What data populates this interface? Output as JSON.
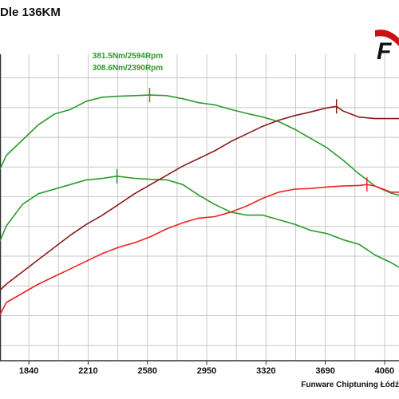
{
  "title": "Dle 136KM",
  "footer": "Funware Chiptuning Łódź",
  "logo_text": "F",
  "logo_accent_color": "#cc1111",
  "chart_data": {
    "type": "line",
    "xlim": [
      1660,
      4150
    ],
    "ylim": [
      0,
      10
    ],
    "grid": true,
    "x_ticks": [
      1840,
      2210,
      2580,
      2950,
      3320,
      3690,
      4060
    ],
    "x_tick_labels": [
      "1840",
      "2210",
      "2580",
      "2950",
      "3320",
      "3690",
      "4060"
    ],
    "y_ticks": [
      0.5,
      1.47,
      2.44,
      3.41,
      4.38,
      5.35,
      6.32,
      7.29,
      8.26,
      9.23
    ],
    "series": [
      {
        "color": "#2a9a2a",
        "points": [
          [
            1660,
            6.25
          ],
          [
            1700,
            6.7
          ],
          [
            1800,
            7.2
          ],
          [
            1900,
            7.7
          ],
          [
            2000,
            8.05
          ],
          [
            2100,
            8.2
          ],
          [
            2200,
            8.47
          ],
          [
            2300,
            8.6
          ],
          [
            2400,
            8.63
          ],
          [
            2500,
            8.65
          ],
          [
            2594,
            8.67
          ],
          [
            2700,
            8.65
          ],
          [
            2800,
            8.55
          ],
          [
            2900,
            8.42
          ],
          [
            3000,
            8.35
          ],
          [
            3100,
            8.2
          ],
          [
            3200,
            8.07
          ],
          [
            3300,
            7.95
          ],
          [
            3400,
            7.8
          ],
          [
            3500,
            7.55
          ],
          [
            3600,
            7.25
          ],
          [
            3700,
            6.95
          ],
          [
            3800,
            6.55
          ],
          [
            3900,
            6.1
          ],
          [
            4000,
            5.7
          ],
          [
            4100,
            5.47
          ],
          [
            4150,
            5.4
          ]
        ]
      },
      {
        "color": "#2a9a2a",
        "points": [
          [
            1660,
            3.9
          ],
          [
            1700,
            4.4
          ],
          [
            1800,
            5.1
          ],
          [
            1900,
            5.45
          ],
          [
            2000,
            5.6
          ],
          [
            2100,
            5.75
          ],
          [
            2200,
            5.9
          ],
          [
            2300,
            5.95
          ],
          [
            2390,
            6.02
          ],
          [
            2500,
            5.95
          ],
          [
            2600,
            5.92
          ],
          [
            2700,
            5.9
          ],
          [
            2800,
            5.75
          ],
          [
            2900,
            5.4
          ],
          [
            3000,
            5.1
          ],
          [
            3100,
            4.85
          ],
          [
            3200,
            4.75
          ],
          [
            3300,
            4.75
          ],
          [
            3400,
            4.6
          ],
          [
            3500,
            4.45
          ],
          [
            3600,
            4.25
          ],
          [
            3700,
            4.15
          ],
          [
            3800,
            3.95
          ],
          [
            3900,
            3.8
          ],
          [
            4000,
            3.45
          ],
          [
            4100,
            3.2
          ],
          [
            4150,
            3.05
          ]
        ]
      },
      {
        "color": "#8b1a1a",
        "points": [
          [
            1660,
            2.3
          ],
          [
            1700,
            2.5
          ],
          [
            1800,
            2.9
          ],
          [
            1900,
            3.3
          ],
          [
            2000,
            3.7
          ],
          [
            2100,
            4.1
          ],
          [
            2200,
            4.45
          ],
          [
            2300,
            4.75
          ],
          [
            2400,
            5.1
          ],
          [
            2500,
            5.45
          ],
          [
            2600,
            5.75
          ],
          [
            2700,
            6.05
          ],
          [
            2800,
            6.35
          ],
          [
            2900,
            6.6
          ],
          [
            3000,
            6.85
          ],
          [
            3100,
            7.15
          ],
          [
            3200,
            7.4
          ],
          [
            3300,
            7.65
          ],
          [
            3400,
            7.85
          ],
          [
            3500,
            8.0
          ],
          [
            3600,
            8.12
          ],
          [
            3700,
            8.25
          ],
          [
            3760,
            8.3
          ],
          [
            3800,
            8.15
          ],
          [
            3900,
            7.95
          ],
          [
            4000,
            7.9
          ],
          [
            4100,
            7.9
          ],
          [
            4150,
            7.9
          ]
        ]
      },
      {
        "color": "#ee2222",
        "points": [
          [
            1660,
            1.5
          ],
          [
            1700,
            1.9
          ],
          [
            1800,
            2.2
          ],
          [
            1900,
            2.5
          ],
          [
            2000,
            2.75
          ],
          [
            2100,
            3.0
          ],
          [
            2200,
            3.25
          ],
          [
            2300,
            3.5
          ],
          [
            2400,
            3.7
          ],
          [
            2500,
            3.85
          ],
          [
            2600,
            4.05
          ],
          [
            2700,
            4.3
          ],
          [
            2800,
            4.5
          ],
          [
            2900,
            4.65
          ],
          [
            3000,
            4.7
          ],
          [
            3100,
            4.85
          ],
          [
            3200,
            5.05
          ],
          [
            3300,
            5.3
          ],
          [
            3400,
            5.5
          ],
          [
            3500,
            5.6
          ],
          [
            3600,
            5.62
          ],
          [
            3700,
            5.67
          ],
          [
            3800,
            5.7
          ],
          [
            3900,
            5.72
          ],
          [
            3950,
            5.75
          ],
          [
            4000,
            5.7
          ],
          [
            4100,
            5.5
          ],
          [
            4150,
            5.5
          ]
        ]
      }
    ],
    "markers": [
      {
        "x": 2594,
        "y": 8.67,
        "color": "#2a9a2a"
      },
      {
        "x": 2390,
        "y": 6.02,
        "color": "#2a9a2a"
      },
      {
        "x": 3760,
        "y": 8.3,
        "color": "#8b1a1a"
      },
      {
        "x": 3950,
        "y": 5.75,
        "color": "#ee2222"
      }
    ],
    "annotations": [
      {
        "text": "381.5Nm/2594Rpm",
        "color": "#2a9a2a"
      },
      {
        "text": "308.6Nm/2390Rpm",
        "color": "#2a9a2a"
      }
    ]
  }
}
